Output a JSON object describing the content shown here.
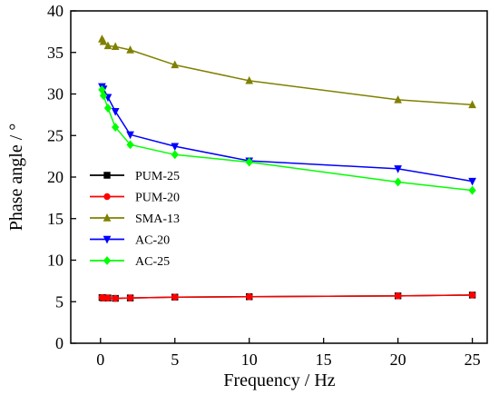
{
  "chart_data": {
    "type": "line",
    "title": "",
    "xlabel": "Frequency / Hz",
    "ylabel": "Phase angle / °",
    "xlim": [
      -2,
      26
    ],
    "ylim": [
      0,
      40
    ],
    "xticks": [
      0,
      5,
      10,
      15,
      20,
      25
    ],
    "yticks": [
      0,
      5,
      10,
      15,
      20,
      25,
      30,
      35,
      40
    ],
    "xtick_labels": [
      "0",
      "5",
      "10",
      "15",
      "20",
      "25"
    ],
    "ytick_labels": [
      "0",
      "5",
      "10",
      "15",
      "20",
      "25",
      "30",
      "35",
      "40"
    ],
    "grid": false,
    "legend_position": "left-center",
    "series": [
      {
        "name": "PUM-25",
        "color": "#000000",
        "marker": "square",
        "x": [
          0.1,
          0.2,
          0.5,
          1,
          2,
          5,
          10,
          20,
          25
        ],
        "y": [
          5.5,
          5.45,
          5.45,
          5.4,
          5.45,
          5.55,
          5.6,
          5.7,
          5.8
        ]
      },
      {
        "name": "PUM-20",
        "color": "#ff0000",
        "marker": "circle",
        "x": [
          0.1,
          0.2,
          0.5,
          1,
          2,
          5,
          10,
          20,
          25
        ],
        "y": [
          5.5,
          5.45,
          5.45,
          5.4,
          5.45,
          5.55,
          5.6,
          5.7,
          5.8
        ]
      },
      {
        "name": "SMA-13",
        "color": "#808000",
        "marker": "triangle-up",
        "x": [
          0.1,
          0.2,
          0.5,
          1,
          2,
          5,
          10,
          20,
          25
        ],
        "y": [
          36.6,
          36.3,
          35.8,
          35.7,
          35.3,
          33.5,
          31.6,
          29.3,
          28.7
        ]
      },
      {
        "name": "AC-20",
        "color": "#0000ff",
        "marker": "triangle-down",
        "x": [
          0.1,
          0.2,
          0.5,
          1,
          2,
          5,
          10,
          20,
          25
        ],
        "y": [
          30.9,
          30.6,
          29.6,
          27.9,
          25.1,
          23.7,
          21.95,
          21.0,
          19.5
        ]
      },
      {
        "name": "AC-25",
        "color": "#00ff00",
        "marker": "diamond",
        "x": [
          0.1,
          0.2,
          0.5,
          1,
          2,
          5,
          10,
          20,
          25
        ],
        "y": [
          30.5,
          29.8,
          28.3,
          26.0,
          23.9,
          22.7,
          21.8,
          19.4,
          18.4
        ]
      }
    ]
  }
}
